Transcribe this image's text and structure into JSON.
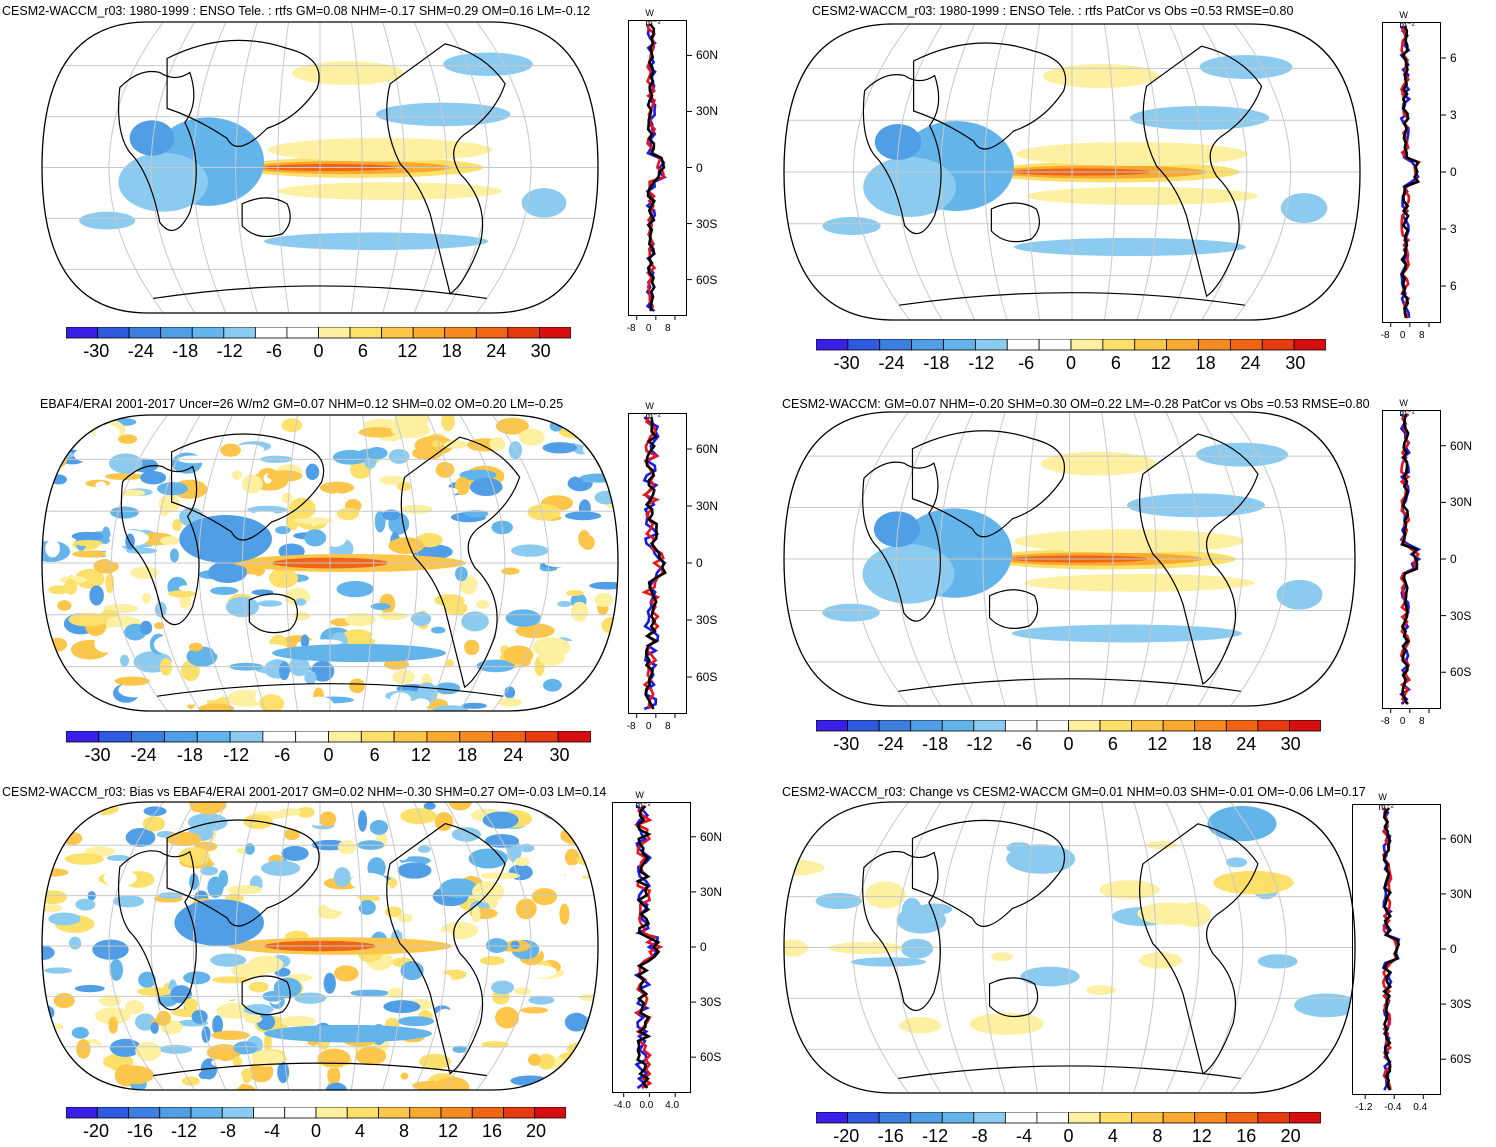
{
  "panels": [
    {
      "id": "p1",
      "title": "CESM2-WACCM_r03: 1980-1999 : ENSO Tele. : rtfs GM=0.08 NHM=-0.17 SHM=0.29 OM=0.16 LM=-0.12",
      "colorbar_labels": [
        "-30",
        "-24",
        "-18",
        "-12",
        "-6",
        "0",
        "6",
        "12",
        "18",
        "24",
        "30"
      ],
      "zonal_xticks": [
        "-8",
        "0",
        "8"
      ],
      "zonal_lat_labels": [
        "60N",
        "30N",
        "0",
        "30S",
        "60S"
      ],
      "zonal_unit": "W m⁻²",
      "pattern": "enso"
    },
    {
      "id": "p2",
      "title": "CESM2-WACCM_r03: 1980-1999 : ENSO Tele. : rtfs PatCor vs Obs =0.53 RMSE=0.80",
      "colorbar_labels": [
        "-30",
        "-24",
        "-18",
        "-12",
        "-6",
        "0",
        "6",
        "12",
        "18",
        "24",
        "30"
      ],
      "zonal_xticks": [
        "-8",
        "0",
        "8"
      ],
      "zonal_lat_labels": [
        "6",
        "3",
        "0",
        "3",
        "6"
      ],
      "zonal_unit": "W m⁻²",
      "pattern": "enso"
    },
    {
      "id": "p3",
      "title": "EBAF4/ERAI 2001-2017 Uncer=26 W/m2 GM=0.07 NHM=0.12 SHM=0.02 OM=0.20 LM=-0.25",
      "colorbar_labels": [
        "-30",
        "-24",
        "-18",
        "-12",
        "-6",
        "0",
        "6",
        "12",
        "18",
        "24",
        "30"
      ],
      "zonal_xticks": [
        "-8",
        "0",
        "8"
      ],
      "zonal_lat_labels": [
        "60N",
        "30N",
        "0",
        "30S",
        "60S"
      ],
      "zonal_unit": "W m⁻²",
      "pattern": "noisy"
    },
    {
      "id": "p4",
      "title": "CESM2-WACCM: GM=0.07 NHM=-0.20 SHM=0.30 OM=0.22 LM=-0.28 PatCor vs Obs =0.53 RMSE=0.80",
      "colorbar_labels": [
        "-30",
        "-24",
        "-18",
        "-12",
        "-6",
        "0",
        "6",
        "12",
        "18",
        "24",
        "30"
      ],
      "zonal_xticks": [
        "-8",
        "0",
        "8"
      ],
      "zonal_lat_labels": [
        "60N",
        "30N",
        "0",
        "30S",
        "60S"
      ],
      "zonal_unit": "W m⁻²",
      "pattern": "enso"
    },
    {
      "id": "p5",
      "title": "CESM2-WACCM_r03: Bias vs EBAF4/ERAI 2001-2017 GM=0.02 NHM=-0.30 SHM=0.27 OM=-0.03 LM=0.14",
      "colorbar_labels": [
        "-20",
        "-16",
        "-12",
        "-8",
        "-4",
        "0",
        "4",
        "8",
        "12",
        "16",
        "20"
      ],
      "zonal_xticks": [
        "-4.0",
        "0.0",
        "4.0"
      ],
      "zonal_lat_labels": [
        "60N",
        "30N",
        "0",
        "30S",
        "60S"
      ],
      "zonal_unit": "W m⁻²",
      "pattern": "bias"
    },
    {
      "id": "p6",
      "title": "CESM2-WACCM_r03: Change vs CESM2-WACCM GM=0.01 NHM=0.03 SHM=-0.01 OM=-0.06 LM=0.17",
      "colorbar_labels": [
        "-20",
        "-16",
        "-12",
        "-8",
        "-4",
        "0",
        "4",
        "8",
        "12",
        "16",
        "20"
      ],
      "zonal_xticks": [
        "-1.2",
        "-0.4",
        "0.4"
      ],
      "zonal_lat_labels": [
        "60N",
        "30N",
        "0",
        "30S",
        "60S"
      ],
      "zonal_unit": "W m⁻²",
      "pattern": "change"
    }
  ],
  "colors": {
    "palette": [
      "#3a1fe6",
      "#2f5ae0",
      "#3d7fe0",
      "#4f9ee6",
      "#62b4ea",
      "#8ccbf0",
      "#ffffff",
      "#ffffff",
      "#fdf0a0",
      "#fde06a",
      "#fcc64a",
      "#f9a830",
      "#f58a22",
      "#ef6515",
      "#e63a10",
      "#d61010"
    ],
    "land_outline": "#000000",
    "grid": "#c8c8c8",
    "series_red": "#e8141e",
    "series_blue": "#1a1ae6",
    "series_black": "#000000"
  }
}
